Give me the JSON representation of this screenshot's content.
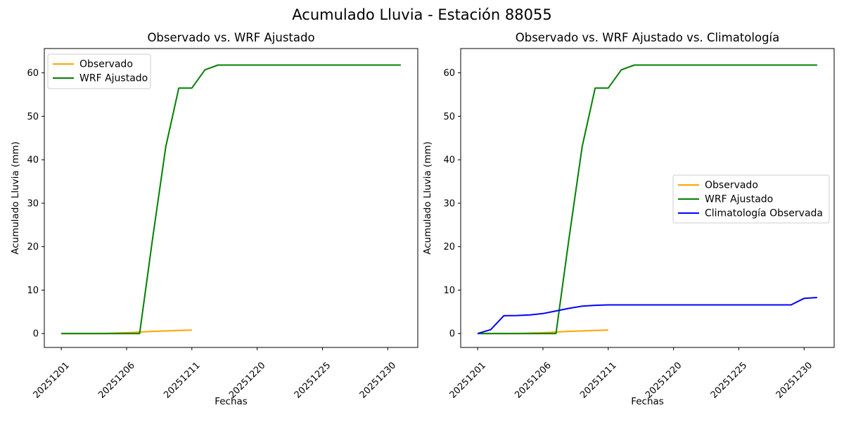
{
  "figure": {
    "suptitle": "Acumulado Lluvia - Estación 88055",
    "background": "#ffffff"
  },
  "colors": {
    "observado": "#FFA500",
    "wrf_ajustado": "#008000",
    "climatologia": "#0000FF",
    "legend_border": "#cccccc",
    "spine": "#000000"
  },
  "chart_data": [
    {
      "type": "line",
      "title": "Observado vs. WRF Ajustado",
      "xlabel": "Fechas",
      "ylabel": "Acumulado Lluvia (mm)",
      "grid": false,
      "n_points": 27,
      "x_tick_indices": [
        0,
        5,
        10,
        15,
        20,
        25
      ],
      "x_tick_labels": [
        "20251201",
        "20251206",
        "20251211",
        "20251220",
        "20251225",
        "20251230"
      ],
      "x_tick_rotation": 45,
      "yticks": [
        0,
        10,
        20,
        30,
        40,
        50,
        60
      ],
      "xlim": [
        -1.3,
        27.3
      ],
      "ylim": [
        -3.2,
        65.6
      ],
      "legend": {
        "position": "upper left",
        "items": [
          {
            "label": "Observado",
            "color": "#FFA500"
          },
          {
            "label": "WRF Ajustado",
            "color": "#008000"
          }
        ]
      },
      "series": [
        {
          "name": "Observado",
          "color": "#FFA500",
          "values": [
            0,
            0,
            0,
            0,
            0.1,
            0.2,
            0.35,
            0.5,
            0.6,
            0.7,
            0.8
          ]
        },
        {
          "name": "WRF Ajustado",
          "color": "#008000",
          "values": [
            0,
            0,
            0,
            0,
            0,
            0,
            0,
            22,
            43,
            56.5,
            56.5,
            60.7,
            61.8,
            61.8,
            61.8,
            61.8,
            61.8,
            61.8,
            61.8,
            61.8,
            61.8,
            61.8,
            61.8,
            61.8,
            61.8,
            61.8,
            61.8
          ]
        }
      ]
    },
    {
      "type": "line",
      "title": "Observado vs. WRF Ajustado vs. Climatología",
      "xlabel": "Fechas",
      "ylabel": "Acumulado Lluvia (mm)",
      "grid": false,
      "n_points": 27,
      "x_tick_indices": [
        0,
        5,
        10,
        15,
        20,
        25
      ],
      "x_tick_labels": [
        "20251201",
        "20251206",
        "20251211",
        "20251220",
        "20251225",
        "20251230"
      ],
      "x_tick_rotation": 45,
      "yticks": [
        0,
        10,
        20,
        30,
        40,
        50,
        60
      ],
      "xlim": [
        -1.3,
        27.3
      ],
      "ylim": [
        -3.2,
        65.6
      ],
      "legend": {
        "position": "center right",
        "items": [
          {
            "label": "Observado",
            "color": "#FFA500"
          },
          {
            "label": "WRF Ajustado",
            "color": "#008000"
          },
          {
            "label": "Climatología Observada",
            "color": "#0000FF"
          }
        ]
      },
      "series": [
        {
          "name": "Observado",
          "color": "#FFA500",
          "values": [
            0,
            0,
            0,
            0,
            0.1,
            0.2,
            0.35,
            0.5,
            0.6,
            0.7,
            0.8
          ]
        },
        {
          "name": "WRF Ajustado",
          "color": "#008000",
          "values": [
            0,
            0,
            0,
            0,
            0,
            0,
            0,
            22,
            43,
            56.5,
            56.5,
            60.7,
            61.8,
            61.8,
            61.8,
            61.8,
            61.8,
            61.8,
            61.8,
            61.8,
            61.8,
            61.8,
            61.8,
            61.8,
            61.8,
            61.8,
            61.8
          ]
        },
        {
          "name": "Climatología Observada",
          "color": "#0000FF",
          "values": [
            0,
            0.9,
            4.1,
            4.15,
            4.3,
            4.6,
            5.2,
            5.8,
            6.3,
            6.5,
            6.6,
            6.6,
            6.6,
            6.6,
            6.6,
            6.6,
            6.6,
            6.6,
            6.6,
            6.6,
            6.6,
            6.6,
            6.6,
            6.6,
            6.6,
            8.1,
            8.3
          ]
        }
      ]
    }
  ]
}
